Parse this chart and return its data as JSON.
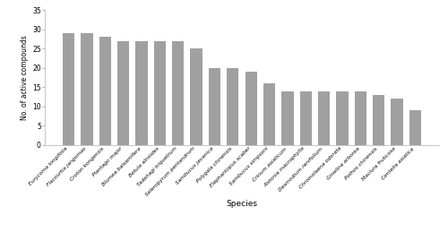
{
  "species": [
    "Eurycoma longifolia",
    "Flacourtia jangomas",
    "Croton kongensis",
    "Plantago major",
    "Blumea balsamifera",
    "Betula alnoides",
    "Tadehagi triquetrum",
    "Seleropyrum pentandrum",
    "Sambucus javanica",
    "Polygala chinensis",
    "Elephantopus scaber",
    "Sambucus simpsoni",
    "Crinum asiaticum",
    "Alstonia macrophylla",
    "Desmodium renifolium",
    "Chromolaena odorata",
    "Gmelina arborea",
    "Pothos chinensis",
    "Maclura fruticosa",
    "Centella asiatica"
  ],
  "values": [
    29,
    29,
    28,
    27,
    27,
    27,
    27,
    25,
    20,
    20,
    19,
    16,
    14,
    14,
    14,
    14,
    14,
    13,
    12,
    9
  ],
  "bar_color": "#a0a0a0",
  "ylabel": "No. of active compounds",
  "xlabel": "Species",
  "ylim": [
    0,
    35
  ],
  "yticks": [
    0,
    5,
    10,
    15,
    20,
    25,
    30,
    35
  ],
  "title": "",
  "figure_width": 5.0,
  "figure_height": 2.79,
  "dpi": 100
}
